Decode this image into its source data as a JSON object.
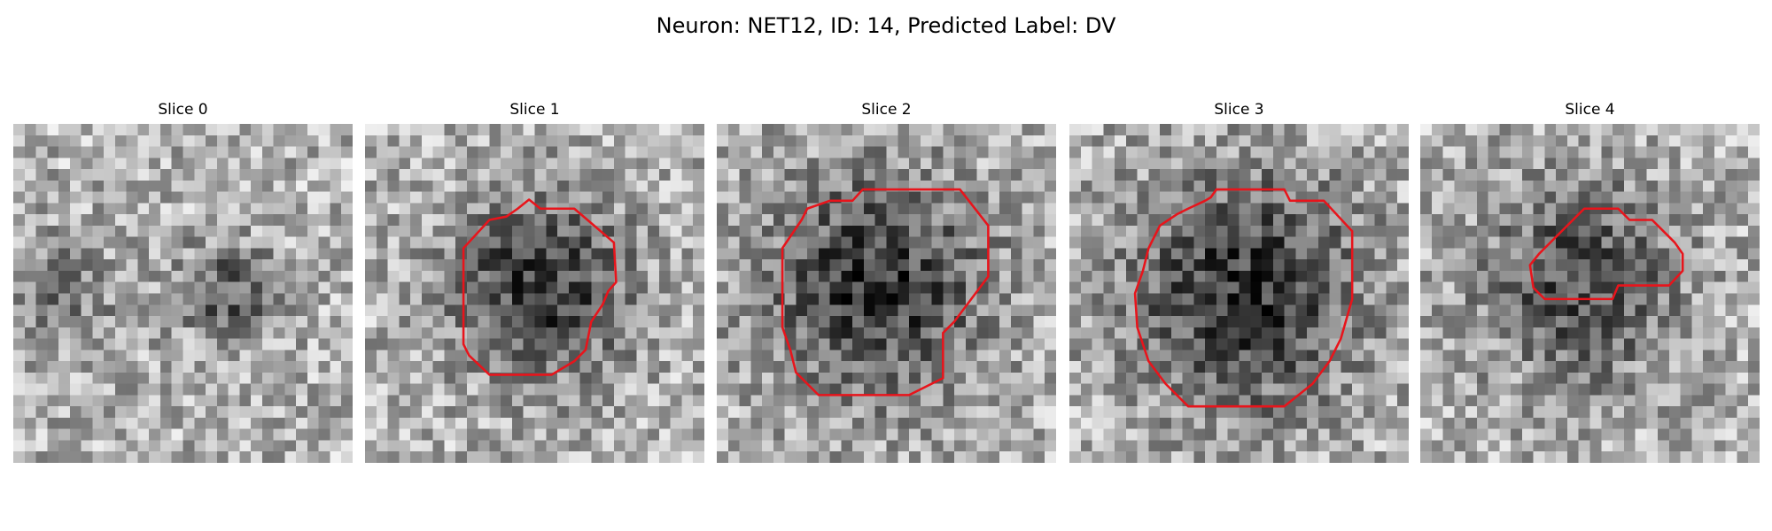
{
  "title": "Neuron: NET12, ID: 14, Predicted Label: DV",
  "panels": [
    {
      "title": "Slice 0"
    },
    {
      "title": "Slice 1"
    },
    {
      "title": "Slice 2"
    },
    {
      "title": "Slice 3"
    },
    {
      "title": "Slice 4"
    }
  ]
}
